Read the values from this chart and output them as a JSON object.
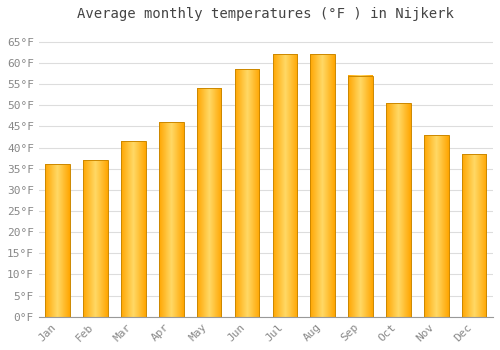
{
  "title": "Average monthly temperatures (°F ) in Nijkerk",
  "months": [
    "Jan",
    "Feb",
    "Mar",
    "Apr",
    "May",
    "Jun",
    "Jul",
    "Aug",
    "Sep",
    "Oct",
    "Nov",
    "Dec"
  ],
  "values": [
    36,
    37,
    41.5,
    46,
    54,
    58.5,
    62,
    62,
    57,
    50.5,
    43,
    38.5
  ],
  "bar_color_center": "#FFD966",
  "bar_color_edge": "#FFA500",
  "bar_edge_color": "#CC8800",
  "background_color": "#FFFFFF",
  "grid_color": "#DDDDDD",
  "yticks": [
    0,
    5,
    10,
    15,
    20,
    25,
    30,
    35,
    40,
    45,
    50,
    55,
    60,
    65
  ],
  "ylim": [
    0,
    68
  ],
  "title_fontsize": 10,
  "tick_fontsize": 8,
  "font_family": "monospace"
}
